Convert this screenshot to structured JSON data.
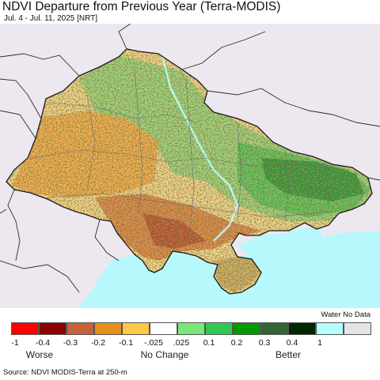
{
  "title": "NDVI Departure from Previous Year (Terra-MODIS)",
  "subtitle": "Jul. 4 - Jul. 11, 2025 [NRT]",
  "legend": {
    "water_no_data_label": "Water No Data",
    "classes": [
      {
        "color": "#ff0000"
      },
      {
        "color": "#8b0000"
      },
      {
        "color": "#c8603a"
      },
      {
        "color": "#e8901c"
      },
      {
        "color": "#ffc84a"
      },
      {
        "color": "#ffffff"
      },
      {
        "color": "#78e878"
      },
      {
        "color": "#30c850"
      },
      {
        "color": "#009a00"
      },
      {
        "color": "#346434"
      },
      {
        "color": "#002800"
      },
      {
        "color": "#b4ffff"
      },
      {
        "color": "#e4e4e4"
      }
    ],
    "ticks": [
      "-1",
      "-0.4",
      "-0.3",
      "-0.2",
      "-0.1",
      "-.025",
      ".025",
      "0.1",
      "0.2",
      "0.3",
      "0.4",
      "1"
    ],
    "categories": {
      "worse": "Worse",
      "no_change": "No Change",
      "better": "Better"
    }
  },
  "source": "Source: NDVI MODIS-Terra at 250-m",
  "map_colors": {
    "outside": "#ede8ef",
    "sea": "#b6f8fc",
    "border": "#2b2b2b"
  }
}
